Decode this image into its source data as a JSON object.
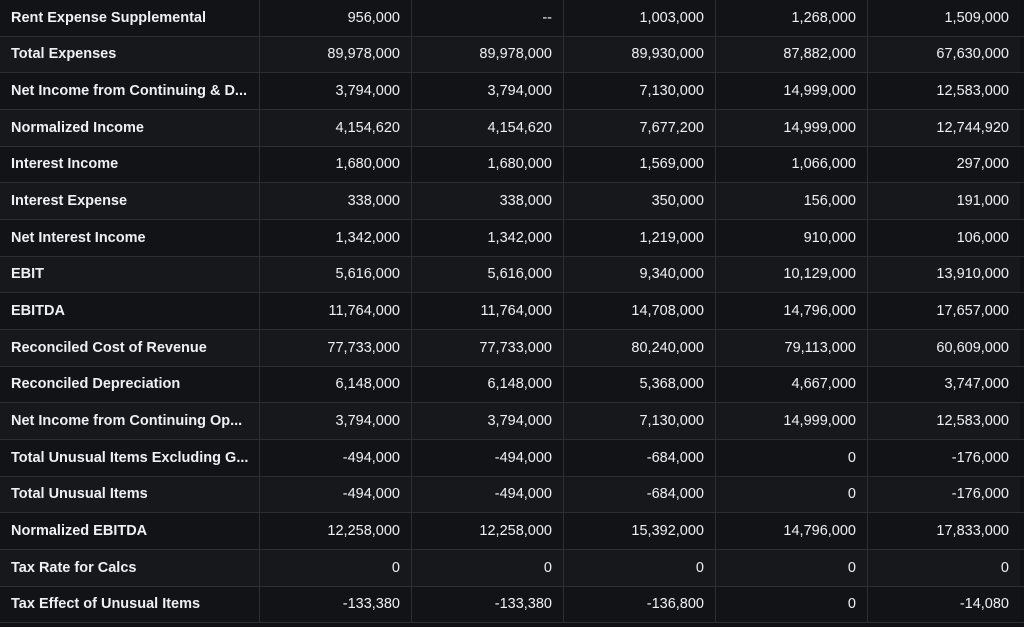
{
  "rows": [
    {
      "label": "Rent Expense Supplemental",
      "values": [
        "956,000",
        "--",
        "1,003,000",
        "1,268,000",
        "1,509,000"
      ]
    },
    {
      "label": "Total Expenses",
      "values": [
        "89,978,000",
        "89,978,000",
        "89,930,000",
        "87,882,000",
        "67,630,000"
      ]
    },
    {
      "label": "Net Income from Continuing & D...",
      "values": [
        "3,794,000",
        "3,794,000",
        "7,130,000",
        "14,999,000",
        "12,583,000"
      ]
    },
    {
      "label": "Normalized Income",
      "values": [
        "4,154,620",
        "4,154,620",
        "7,677,200",
        "14,999,000",
        "12,744,920"
      ]
    },
    {
      "label": "Interest Income",
      "values": [
        "1,680,000",
        "1,680,000",
        "1,569,000",
        "1,066,000",
        "297,000"
      ]
    },
    {
      "label": "Interest Expense",
      "values": [
        "338,000",
        "338,000",
        "350,000",
        "156,000",
        "191,000"
      ]
    },
    {
      "label": "Net Interest Income",
      "values": [
        "1,342,000",
        "1,342,000",
        "1,219,000",
        "910,000",
        "106,000"
      ]
    },
    {
      "label": "EBIT",
      "values": [
        "5,616,000",
        "5,616,000",
        "9,340,000",
        "10,129,000",
        "13,910,000"
      ]
    },
    {
      "label": "EBITDA",
      "values": [
        "11,764,000",
        "11,764,000",
        "14,708,000",
        "14,796,000",
        "17,657,000"
      ]
    },
    {
      "label": "Reconciled Cost of Revenue",
      "values": [
        "77,733,000",
        "77,733,000",
        "80,240,000",
        "79,113,000",
        "60,609,000"
      ]
    },
    {
      "label": "Reconciled Depreciation",
      "values": [
        "6,148,000",
        "6,148,000",
        "5,368,000",
        "4,667,000",
        "3,747,000"
      ]
    },
    {
      "label": "Net Income from Continuing Op...",
      "values": [
        "3,794,000",
        "3,794,000",
        "7,130,000",
        "14,999,000",
        "12,583,000"
      ]
    },
    {
      "label": "Total Unusual Items Excluding G...",
      "values": [
        "-494,000",
        "-494,000",
        "-684,000",
        "0",
        "-176,000"
      ]
    },
    {
      "label": "Total Unusual Items",
      "values": [
        "-494,000",
        "-494,000",
        "-684,000",
        "0",
        "-176,000"
      ]
    },
    {
      "label": "Normalized EBITDA",
      "values": [
        "12,258,000",
        "12,258,000",
        "15,392,000",
        "14,796,000",
        "17,833,000"
      ]
    },
    {
      "label": "Tax Rate for Calcs",
      "values": [
        "0",
        "0",
        "0",
        "0",
        "0"
      ]
    },
    {
      "label": "Tax Effect of Unusual Items",
      "values": [
        "-133,380",
        "-133,380",
        "-136,800",
        "0",
        "-14,080"
      ]
    }
  ]
}
